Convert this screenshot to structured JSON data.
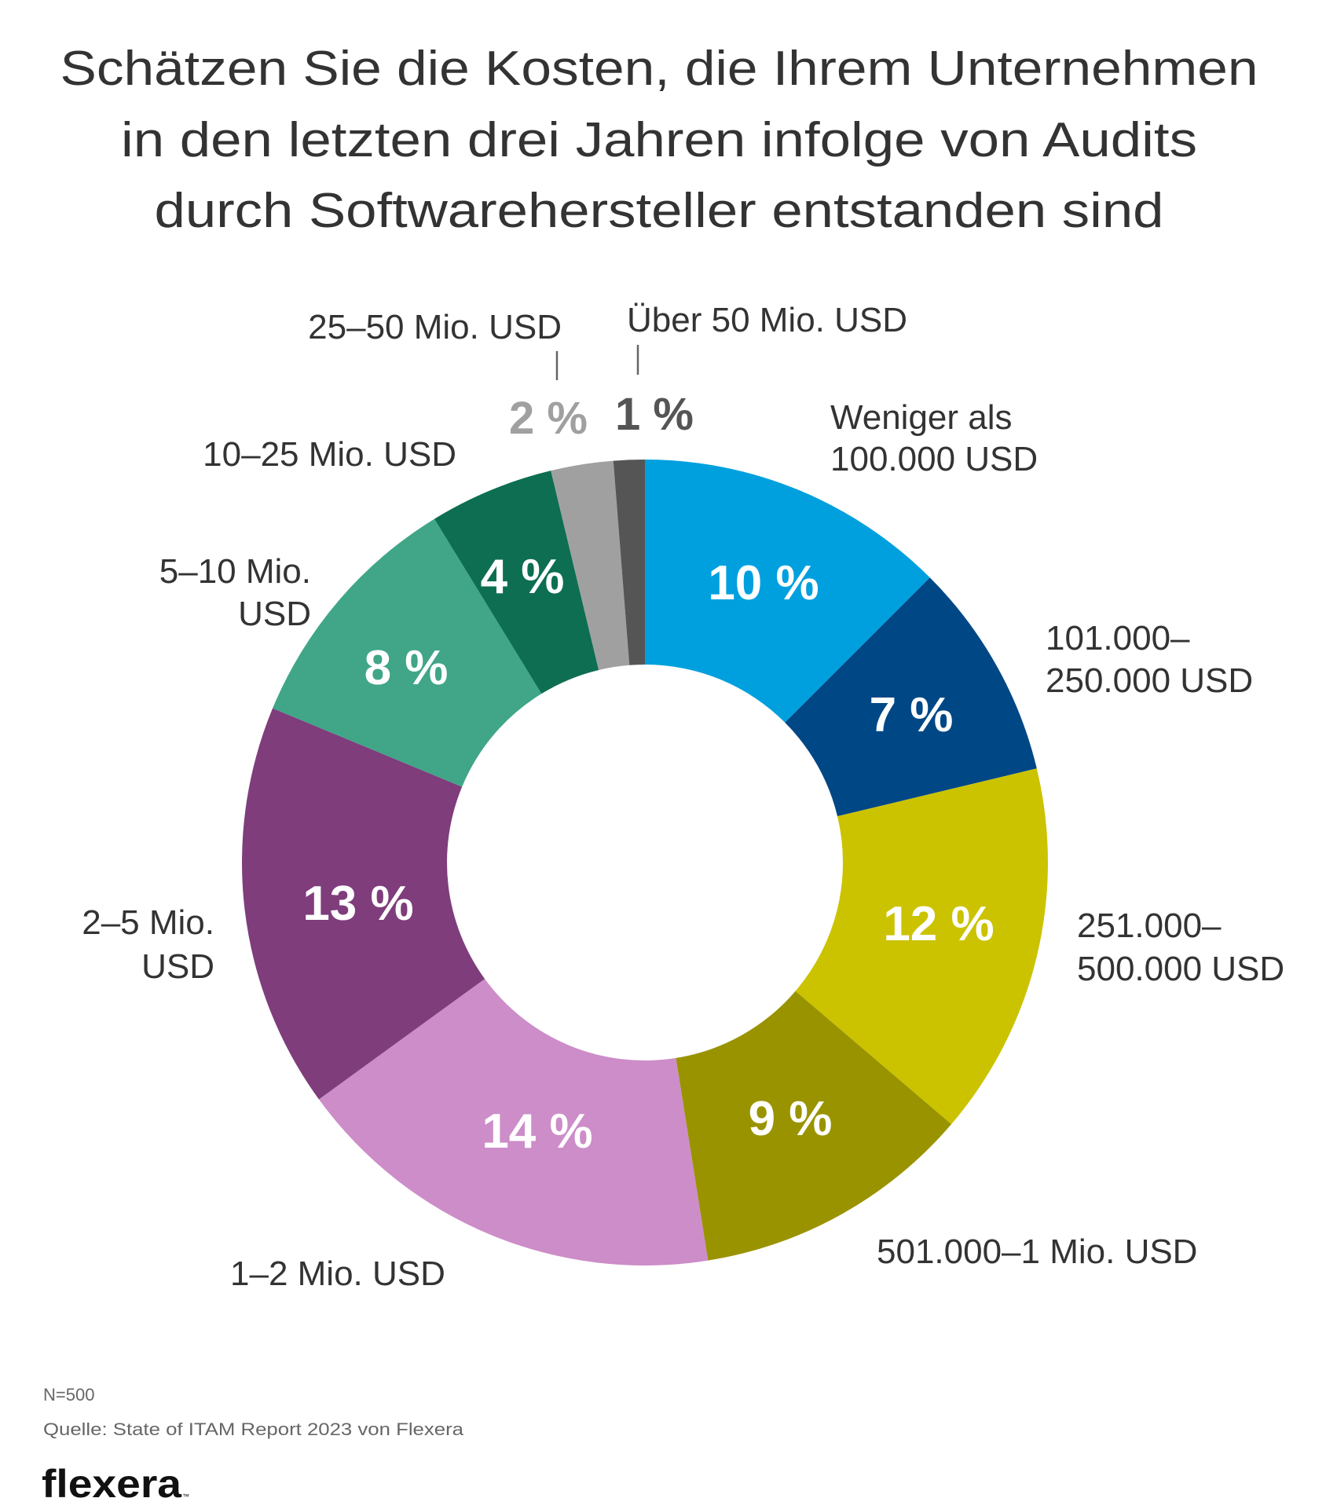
{
  "chart_data": {
    "type": "pie",
    "variant": "donut",
    "title_lines": [
      "Schätzen Sie die Kosten, die Ihrem Unternehmen",
      "in den letzten drei Jahren infolge von Audits",
      "durch Softwarehersteller entstanden sind"
    ],
    "unit": "%",
    "start": "top",
    "direction": "clockwise",
    "slices": [
      {
        "label_lines": [
          "Weniger als",
          "100.000 USD"
        ],
        "value": 10,
        "value_label": "10 %",
        "color": "#00A0DF"
      },
      {
        "label_lines": [
          "101.000–",
          "250.000 USD"
        ],
        "value": 7,
        "value_label": "7 %",
        "color": "#004785"
      },
      {
        "label_lines": [
          "251.000–",
          "500.000 USD"
        ],
        "value": 12,
        "value_label": "12 %",
        "color": "#CBC300"
      },
      {
        "label_lines": [
          "501.000–1 Mio. USD"
        ],
        "value": 9,
        "value_label": "9 %",
        "color": "#9A9300"
      },
      {
        "label_lines": [
          "1–2 Mio. USD"
        ],
        "value": 14,
        "value_label": "14 %",
        "color": "#CC8DC8"
      },
      {
        "label_lines": [
          "2–5 Mio.",
          "USD"
        ],
        "value": 13,
        "value_label": "13 %",
        "color": "#7F3D7C"
      },
      {
        "label_lines": [
          "5–10 Mio.",
          "USD"
        ],
        "value": 8,
        "value_label": "8 %",
        "color": "#40A687"
      },
      {
        "label_lines": [
          "10–25 Mio. USD"
        ],
        "value": 4,
        "value_label": "4 %",
        "color": "#0D6E52"
      },
      {
        "label_lines": [
          "25–50 Mio. USD"
        ],
        "value": 2,
        "value_label": "2 %",
        "color": "#A0A0A0"
      },
      {
        "label_lines": [
          "Über 50 Mio. USD"
        ],
        "value": 1,
        "value_label": "1 %",
        "color": "#555555"
      }
    ],
    "legend": "none (labels placed around the ring)"
  },
  "footer": {
    "sample_size": "N=500",
    "source": "Quelle: State of ITAM Report 2023 von Flexera",
    "logo_text": "flexera",
    "logo_mark": "™"
  },
  "colors": {
    "text": "#333333",
    "note": "#666666",
    "background": "#FFFFFF"
  }
}
